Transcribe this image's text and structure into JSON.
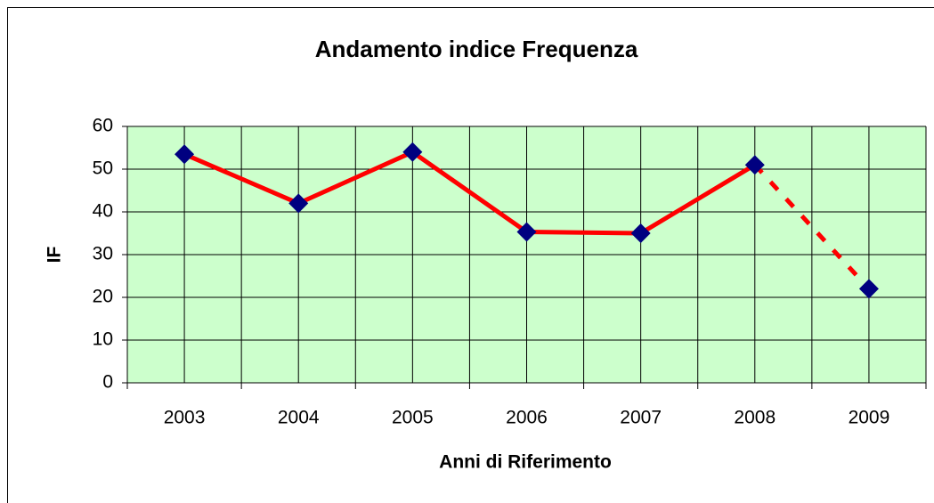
{
  "chart_data": {
    "type": "line",
    "title": "Andamento indice Frequenza",
    "x_label": "Anni di Riferimento",
    "y_label": "IF",
    "categories": [
      "2003",
      "2004",
      "2005",
      "2006",
      "2007",
      "2008",
      "2009"
    ],
    "series": [
      {
        "color": "#ff0000",
        "marker_color": "#000080",
        "values": [
          53.5,
          42,
          54,
          35.3,
          35,
          51,
          22
        ]
      }
    ],
    "segment_styles": [
      "solid",
      "solid",
      "solid",
      "solid",
      "solid",
      "dashed"
    ],
    "ylim": [
      0,
      60
    ],
    "yticks": [
      0,
      10,
      20,
      30,
      40,
      50,
      60
    ],
    "grid": true,
    "plot_background": "#ccffcc"
  }
}
